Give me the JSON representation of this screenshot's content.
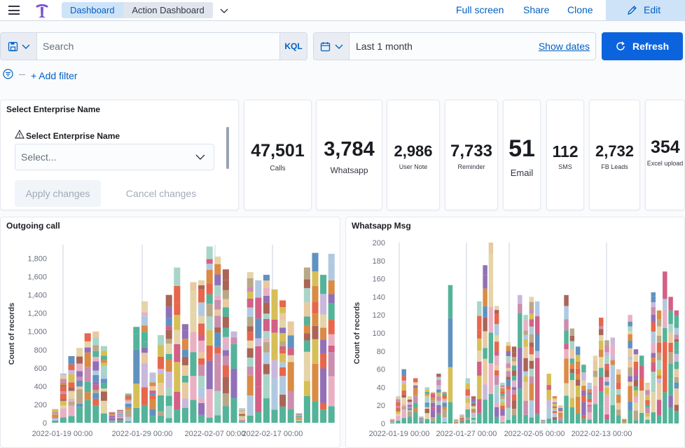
{
  "header": {
    "breadcrumbs": [
      "Dashboard",
      "Action Dashboard"
    ],
    "links": [
      "Full screen",
      "Share",
      "Clone"
    ],
    "edit_label": "Edit"
  },
  "query": {
    "search_placeholder": "Search",
    "language": "KQL",
    "date_range": "Last 1 month",
    "show_dates": "Show dates",
    "refresh_label": "Refresh",
    "add_filter": "+ Add filter"
  },
  "controls": {
    "panel_title": "Select Enterprise Name",
    "field_label": "Select Enterprise Name",
    "select_placeholder": "Select...",
    "apply_label": "Apply changes",
    "cancel_label": "Cancel changes"
  },
  "metrics": [
    {
      "value": "47,501",
      "label": "Calls"
    },
    {
      "value": "3,784",
      "label": "Whatsapp"
    },
    {
      "value": "2,986",
      "label": "User Note"
    },
    {
      "value": "7,733",
      "label": "Reminder"
    },
    {
      "value": "51",
      "label": "Email"
    },
    {
      "value": "112",
      "label": "SMS"
    },
    {
      "value": "2,732",
      "label": "FB Leads"
    },
    {
      "value": "354",
      "label": "Excel upload"
    }
  ],
  "colors": {
    "accent": "#0b64dd",
    "link": "#0061c2",
    "palette": [
      "#54b399",
      "#6092c0",
      "#d36086",
      "#9170b8",
      "#ca8eae",
      "#d6bf57",
      "#b9a888",
      "#da8b45",
      "#aa6556",
      "#e7664c",
      "#a8d5c8",
      "#b0c9e0",
      "#e9b0c3",
      "#c8b8dc",
      "#e4d4a8",
      "#e8c9a0"
    ]
  },
  "chart_data": [
    {
      "type": "bar",
      "title": "Outgoing call",
      "ylabel": "Count of records",
      "stacked": true,
      "ylim": [
        0,
        1950
      ],
      "yticks": [
        0,
        200,
        400,
        600,
        800,
        "1,000",
        "1,200",
        "1,400",
        "1,600",
        "1,800"
      ],
      "xticks": [
        "2022-01-19 00:00",
        "2022-01-29 00:00",
        "2022-02-07 00:00",
        "2022-02-17 00:00"
      ],
      "grid": "vertical",
      "legend": "none",
      "values": [
        150,
        540,
        730,
        820,
        980,
        1000,
        840,
        120,
        140,
        320,
        1050,
        1330,
        550,
        960,
        1400,
        1700,
        1080,
        1540,
        1560,
        1930,
        1820,
        1680,
        1000,
        160,
        1650,
        1560,
        1620,
        1460,
        1340,
        1110,
        100,
        1700,
        1860,
        1620,
        1850
      ]
    },
    {
      "type": "bar",
      "title": "Whatsapp Msg",
      "ylabel": "Count of records",
      "stacked": true,
      "ylim": [
        0,
        200
      ],
      "yticks": [
        0,
        20,
        40,
        60,
        80,
        100,
        120,
        140,
        160,
        180,
        200
      ],
      "xticks": [
        "2022-01-19 00:00",
        "2022-01-27 00:00",
        "2022-02-05 00:00",
        "2022-02-13 00:00"
      ],
      "grid": "vertical",
      "legend": "none",
      "values": [
        5,
        30,
        60,
        30,
        50,
        8,
        40,
        35,
        55,
        35,
        153,
        5,
        10,
        50,
        30,
        135,
        175,
        200,
        130,
        45,
        90,
        85,
        142,
        120,
        140,
        135,
        4,
        55,
        30,
        20,
        142,
        105,
        85,
        65,
        45,
        75,
        117,
        92,
        95,
        60,
        5,
        120,
        82,
        75,
        45,
        145,
        125,
        168,
        140,
        125
      ]
    }
  ]
}
